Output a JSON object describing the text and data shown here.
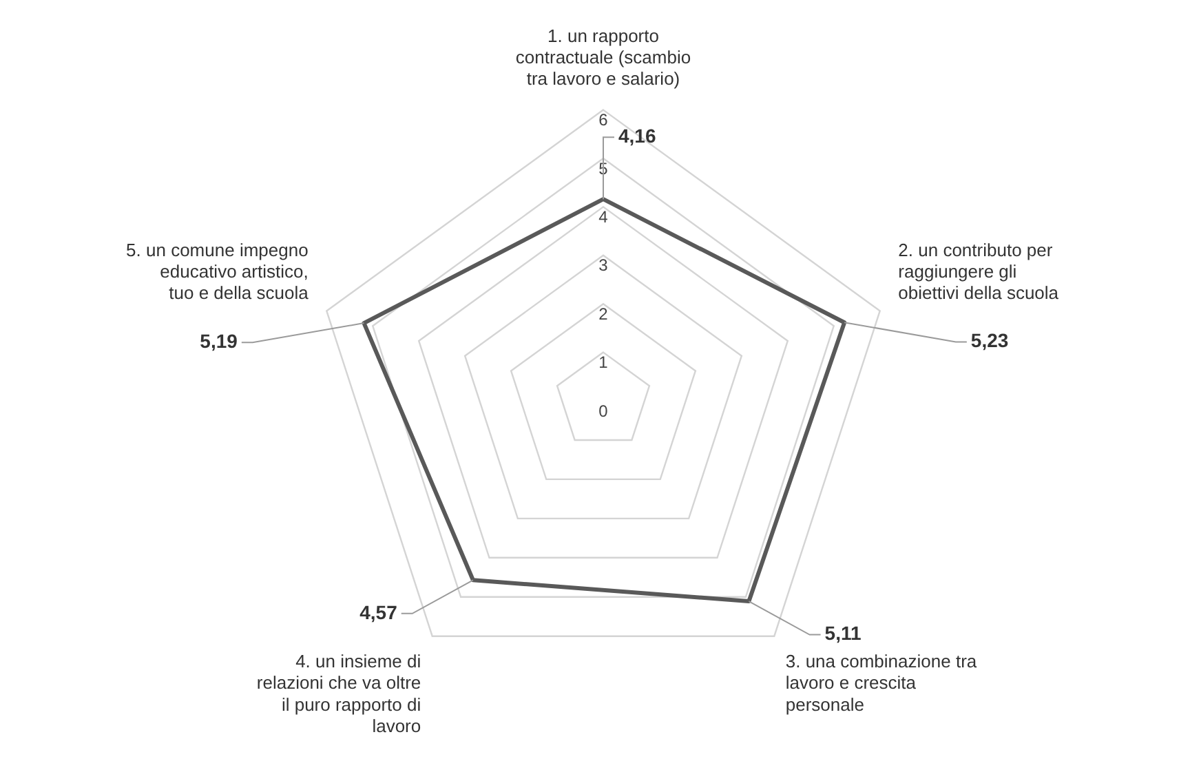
{
  "chart_data": {
    "type": "radar",
    "categories": [
      "1. un rapporto contractuale (scambio tra lavoro e salario)",
      "2. un contributo per raggiungere gli obiettivi della scuola",
      "3. una combinazione tra lavoro e crescita personale",
      "4. un insieme di relazioni che va oltre il puro rapporto di lavoro",
      "5. un comune impegno educativo artistico, tuo e della scuola"
    ],
    "series": [
      {
        "color": "#595959",
        "values": [
          4.16,
          5.23,
          5.11,
          4.57,
          5.19
        ],
        "value_labels": [
          "4,16",
          "5,23",
          "5,11",
          "4,57",
          "5,19"
        ]
      }
    ],
    "ylim": [
      0,
      6
    ],
    "yticks": [
      0,
      1,
      2,
      3,
      4,
      5,
      6
    ],
    "grid": true,
    "marker": "none"
  }
}
